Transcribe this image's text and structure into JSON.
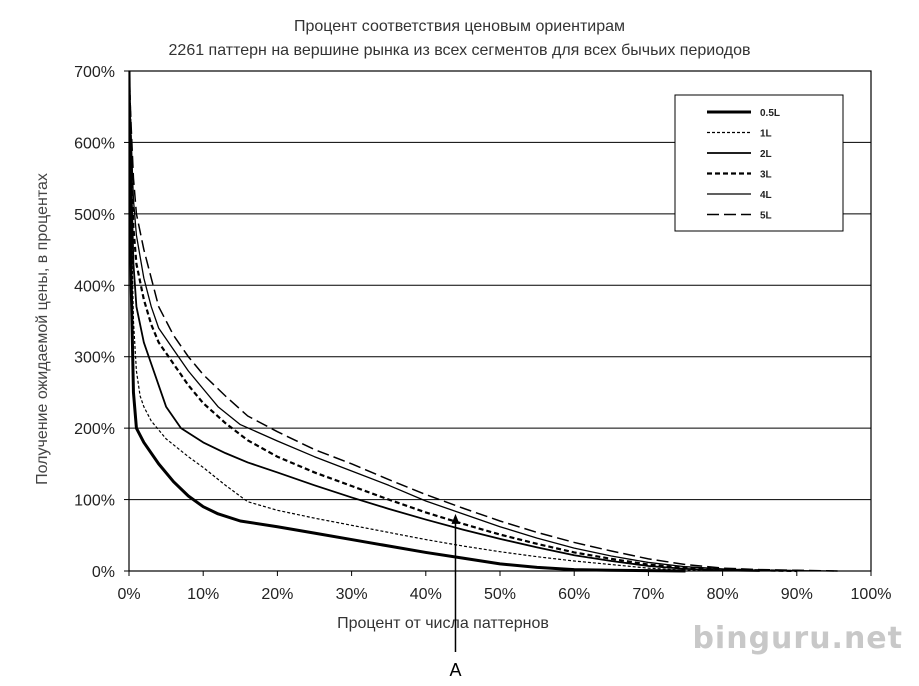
{
  "chart_data": {
    "type": "line",
    "title": "Процент соответствия ценовым ориентирам",
    "subtitle": "2261 паттерн на вершине рынка из всех сегментов для всех бычьих периодов",
    "xlabel": "Процент от числа паттернов",
    "ylabel": "Получение ожидаемой цены, в процентах",
    "xlim": [
      0,
      100
    ],
    "ylim": [
      0,
      700
    ],
    "x_ticks": [
      "0%",
      "10%",
      "20%",
      "30%",
      "40%",
      "50%",
      "60%",
      "70%",
      "80%",
      "90%",
      "100%"
    ],
    "y_ticks": [
      "0%",
      "100%",
      "200%",
      "300%",
      "400%",
      "500%",
      "600%",
      "700%"
    ],
    "grid": "horizontal",
    "legend_position": "top-right",
    "series": [
      {
        "name": "0.5L",
        "style": "solid-thick",
        "x": [
          0,
          0.3,
          0.6,
          1,
          2,
          4,
          6,
          8,
          10,
          12,
          15,
          20,
          25,
          30,
          35,
          40,
          45,
          50,
          55,
          60,
          65,
          70,
          72,
          75
        ],
        "y": [
          700,
          400,
          250,
          200,
          180,
          150,
          125,
          105,
          90,
          80,
          70,
          62,
          53,
          44,
          35,
          26,
          18,
          10,
          5,
          2,
          1,
          0.5,
          0.3,
          0
        ]
      },
      {
        "name": "1L",
        "style": "dotted-fine",
        "x": [
          0,
          0.3,
          0.6,
          1,
          1.5,
          2,
          3,
          5,
          8,
          10,
          13,
          16,
          20,
          25,
          30,
          35,
          40,
          45,
          50,
          55,
          60,
          65,
          70,
          75,
          80
        ],
        "y": [
          700,
          500,
          350,
          280,
          245,
          230,
          210,
          185,
          160,
          145,
          120,
          97,
          85,
          74,
          64,
          54,
          44,
          35,
          27,
          20,
          14,
          9,
          4,
          1,
          0
        ]
      },
      {
        "name": "2L",
        "style": "solid",
        "x": [
          0,
          0.3,
          0.6,
          1,
          2,
          3,
          4,
          5,
          7,
          10,
          13,
          16,
          20,
          25,
          30,
          35,
          40,
          45,
          50,
          55,
          60,
          65,
          70,
          75,
          80,
          85
        ],
        "y": [
          700,
          550,
          430,
          370,
          320,
          290,
          260,
          230,
          200,
          180,
          165,
          152,
          138,
          120,
          103,
          87,
          72,
          58,
          45,
          33,
          22,
          14,
          7,
          3,
          1,
          0
        ]
      },
      {
        "name": "3L",
        "style": "dash-dot",
        "x": [
          0,
          0.3,
          0.6,
          1,
          2,
          3,
          4,
          6,
          8,
          10,
          13,
          16,
          20,
          25,
          30,
          35,
          40,
          45,
          50,
          55,
          60,
          65,
          70,
          75,
          80,
          85,
          90
        ],
        "y": [
          700,
          580,
          480,
          430,
          380,
          345,
          320,
          290,
          260,
          235,
          207,
          183,
          160,
          138,
          119,
          100,
          82,
          66,
          51,
          38,
          26,
          17,
          9,
          4,
          2,
          1,
          0
        ]
      },
      {
        "name": "4L",
        "style": "solid-thin",
        "x": [
          0,
          0.3,
          0.6,
          1,
          2,
          3,
          4,
          6,
          8,
          10,
          12,
          15,
          20,
          25,
          30,
          35,
          40,
          45,
          50,
          55,
          60,
          65,
          70,
          75,
          80,
          85,
          90,
          95
        ],
        "y": [
          700,
          600,
          520,
          470,
          410,
          370,
          340,
          310,
          280,
          255,
          230,
          205,
          182,
          160,
          140,
          120,
          98,
          80,
          62,
          46,
          32,
          21,
          12,
          6,
          3,
          1,
          0.5,
          0
        ]
      },
      {
        "name": "5L",
        "style": "dashed-long",
        "x": [
          0,
          0.3,
          0.6,
          1,
          2,
          3,
          4,
          6,
          8,
          10,
          13,
          16,
          20,
          25,
          30,
          35,
          40,
          45,
          50,
          55,
          60,
          65,
          70,
          75,
          80,
          85,
          90,
          95.5
        ],
        "y": [
          700,
          620,
          550,
          500,
          450,
          410,
          370,
          330,
          300,
          275,
          245,
          217,
          195,
          170,
          150,
          128,
          107,
          88,
          70,
          54,
          40,
          28,
          17,
          9,
          4,
          2,
          1,
          0
        ]
      }
    ],
    "annotation": {
      "label": "A",
      "x": 44,
      "y": 80
    }
  },
  "watermark": "binguru.net"
}
